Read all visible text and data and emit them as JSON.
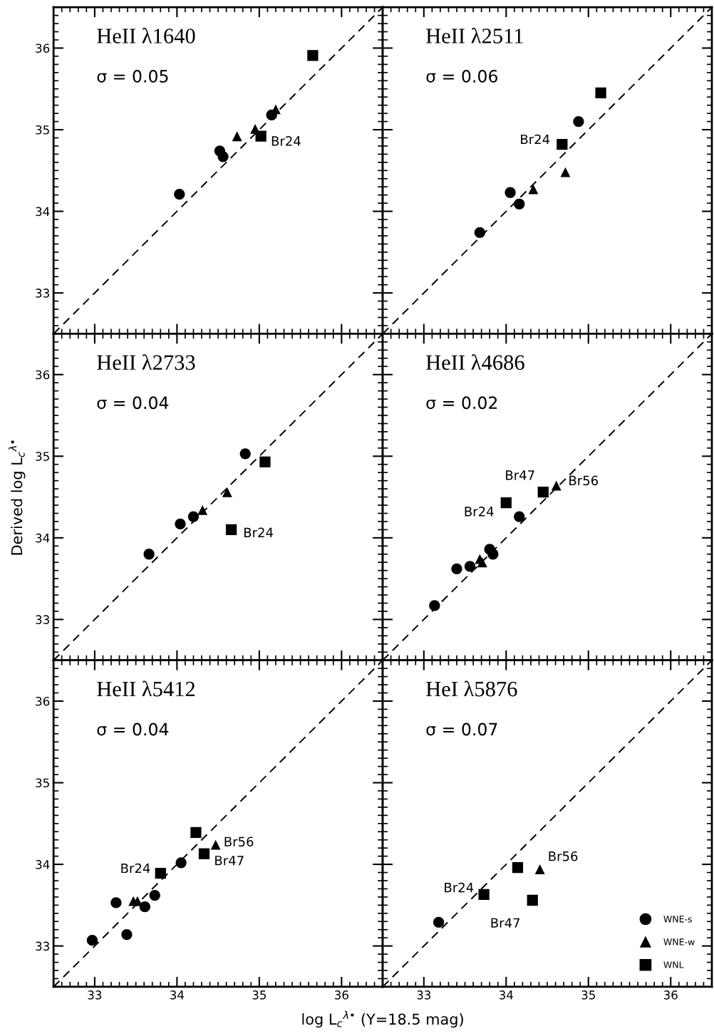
{
  "chart_data": [
    {
      "type": "scatter",
      "title": "HeII λ1640",
      "subtitle": "σ = 0.05",
      "xlim": [
        32.5,
        36.5
      ],
      "ylim": [
        32.5,
        36.5
      ],
      "xticks": [
        33,
        34,
        35,
        36
      ],
      "yticks": [
        33,
        34,
        35,
        36
      ],
      "tick_labels": "y",
      "grid": false,
      "annotations": [
        {
          "text": "Br24",
          "x": 35.02,
          "y": 34.92
        }
      ],
      "series": [
        {
          "type": "line",
          "color": "#000000",
          "line_style": "dashed",
          "marker": "none",
          "x": [
            32.5,
            36.5
          ],
          "values": [
            32.5,
            36.5
          ]
        },
        {
          "color": "#000000",
          "marker": "circle",
          "x": [
            34.03,
            34.52,
            34.56,
            35.15
          ],
          "values": [
            34.21,
            34.74,
            34.67,
            35.18
          ]
        },
        {
          "color": "#000000",
          "marker": "triangle",
          "x": [
            34.73,
            34.95,
            35.2
          ],
          "values": [
            34.92,
            35.01,
            35.25
          ]
        },
        {
          "color": "#000000",
          "marker": "square",
          "x": [
            35.02,
            35.65
          ],
          "values": [
            34.92,
            35.91
          ]
        }
      ]
    },
    {
      "type": "scatter",
      "title": "HeII λ2511",
      "subtitle": "σ = 0.06",
      "xlim": [
        32.5,
        36.5
      ],
      "ylim": [
        32.5,
        36.5
      ],
      "xticks": [
        33,
        34,
        35,
        36
      ],
      "yticks": [
        33,
        34,
        35,
        36
      ],
      "tick_labels": false,
      "grid": false,
      "annotations": [
        {
          "text": "Br24",
          "x": 34.68,
          "y": 34.82
        }
      ],
      "series": [
        {
          "type": "line",
          "color": "#000000",
          "line_style": "dashed",
          "marker": "none",
          "x": [
            32.5,
            36.5
          ],
          "values": [
            32.5,
            36.5
          ]
        },
        {
          "color": "#000000",
          "marker": "circle",
          "x": [
            33.68,
            34.05,
            34.16,
            34.88
          ],
          "values": [
            33.74,
            34.23,
            34.09,
            35.1
          ]
        },
        {
          "color": "#000000",
          "marker": "triangle",
          "x": [
            34.33,
            34.72
          ],
          "values": [
            34.27,
            34.48
          ]
        },
        {
          "color": "#000000",
          "marker": "square",
          "x": [
            34.68,
            35.15
          ],
          "values": [
            34.82,
            35.45
          ]
        }
      ]
    },
    {
      "type": "scatter",
      "title": "HeII λ2733",
      "subtitle": "σ = 0.04",
      "ylabel": "Derived log L$_{c}$$^{λ•}$",
      "xlim": [
        32.5,
        36.5
      ],
      "ylim": [
        32.5,
        36.5
      ],
      "xticks": [
        33,
        34,
        35,
        36
      ],
      "yticks": [
        33,
        34,
        35,
        36
      ],
      "tick_labels": "y",
      "grid": false,
      "annotations": [
        {
          "text": "Br24",
          "x": 34.66,
          "y": 34.1
        }
      ],
      "series": [
        {
          "type": "line",
          "color": "#000000",
          "line_style": "dashed",
          "marker": "none",
          "x": [
            32.5,
            36.5
          ],
          "values": [
            32.5,
            36.5
          ]
        },
        {
          "color": "#000000",
          "marker": "circle",
          "x": [
            33.66,
            34.04,
            34.2,
            34.83
          ],
          "values": [
            33.8,
            34.17,
            34.26,
            35.03
          ]
        },
        {
          "color": "#000000",
          "marker": "triangle",
          "x": [
            34.31,
            34.61
          ],
          "values": [
            34.34,
            34.56
          ]
        },
        {
          "color": "#000000",
          "marker": "square",
          "x": [
            35.07,
            34.66
          ],
          "values": [
            34.93,
            34.1
          ]
        }
      ]
    },
    {
      "type": "scatter",
      "title": "HeII λ4686",
      "subtitle": "σ = 0.02",
      "xlim": [
        32.5,
        36.5
      ],
      "ylim": [
        32.5,
        36.5
      ],
      "xticks": [
        33,
        34,
        35,
        36
      ],
      "yticks": [
        33,
        34,
        35,
        36
      ],
      "tick_labels": false,
      "grid": false,
      "annotations": [
        {
          "text": "Br24",
          "x": 34.0,
          "y": 34.43
        },
        {
          "text": "Br47",
          "x": 34.45,
          "y": 34.56
        },
        {
          "text": "Br56",
          "x": 34.61,
          "y": 34.64
        }
      ],
      "series": [
        {
          "type": "line",
          "color": "#000000",
          "line_style": "dashed",
          "marker": "none",
          "x": [
            32.5,
            36.5
          ],
          "values": [
            32.5,
            36.5
          ]
        },
        {
          "color": "#000000",
          "marker": "circle",
          "x": [
            33.13,
            33.4,
            33.56,
            33.8,
            33.84,
            34.16
          ],
          "values": [
            33.17,
            33.62,
            33.65,
            33.86,
            33.8,
            34.26
          ]
        },
        {
          "color": "#000000",
          "marker": "triangle",
          "x": [
            33.68,
            33.71,
            34.61
          ],
          "values": [
            33.74,
            33.7,
            34.64
          ]
        },
        {
          "color": "#000000",
          "marker": "square",
          "x": [
            34.0,
            34.43,
            34.45
          ],
          "values": [
            34.43,
            null,
            34.56
          ]
        }
      ]
    },
    {
      "type": "scatter",
      "title": "HeII λ5412",
      "subtitle": "σ = 0.04",
      "xlabel": "log L$_{c}$$^{λ•}$ (Y=18.5 mag)",
      "xlim": [
        32.5,
        36.5
      ],
      "ylim": [
        32.5,
        36.5
      ],
      "xticks": [
        33,
        34,
        35,
        36
      ],
      "yticks": [
        33,
        34,
        35,
        36
      ],
      "grid": false,
      "annotations": [
        {
          "text": "Br24",
          "x": 33.8,
          "y": 33.89
        },
        {
          "text": "Br56",
          "x": 34.47,
          "y": 34.24
        },
        {
          "text": "Br47",
          "x": 34.33,
          "y": 34.13
        }
      ],
      "series": [
        {
          "type": "line",
          "color": "#000000",
          "line_style": "dashed",
          "marker": "none",
          "x": [
            32.5,
            36.5
          ],
          "values": [
            32.5,
            36.5
          ]
        },
        {
          "color": "#000000",
          "marker": "circle",
          "x": [
            32.97,
            33.26,
            33.39,
            33.61,
            33.73,
            34.05
          ],
          "values": [
            33.07,
            33.53,
            33.14,
            33.48,
            33.62,
            34.02
          ]
        },
        {
          "color": "#000000",
          "marker": "triangle",
          "x": [
            33.47,
            33.52,
            34.47
          ],
          "values": [
            33.55,
            33.55,
            34.24
          ]
        },
        {
          "color": "#000000",
          "marker": "square",
          "x": [
            33.8,
            34.23,
            34.33
          ],
          "values": [
            33.89,
            34.39,
            34.13
          ]
        }
      ]
    },
    {
      "type": "scatter",
      "title": "HeI λ5876",
      "subtitle": "σ = 0.07",
      "xlim": [
        32.5,
        36.5
      ],
      "ylim": [
        32.5,
        36.5
      ],
      "xticks": [
        33,
        34,
        35,
        36
      ],
      "yticks": [
        33,
        34,
        35,
        36
      ],
      "tick_labels": "x",
      "grid": false,
      "legend": "bottom right",
      "annotations": [
        {
          "text": "Br24",
          "x": 33.73,
          "y": 33.63
        },
        {
          "text": "Br56",
          "x": 34.41,
          "y": 33.94
        },
        {
          "text": "Br47",
          "x": 34.32,
          "y": 33.56
        }
      ],
      "series": [
        {
          "type": "line",
          "color": "#000000",
          "line_style": "dashed",
          "marker": "none",
          "x": [
            32.5,
            36.5
          ],
          "values": [
            32.5,
            36.5
          ]
        },
        {
          "name": "WNE-s",
          "color": "#000000",
          "marker": "circle",
          "x": [
            33.18
          ],
          "values": [
            33.29
          ]
        },
        {
          "name": "WNE-w",
          "color": "#000000",
          "marker": "triangle",
          "x": [
            34.41
          ],
          "values": [
            33.94
          ]
        },
        {
          "name": "WNL",
          "color": "#000000",
          "marker": "square",
          "x": [
            34.14,
            33.73,
            34.32
          ],
          "values": [
            33.96,
            33.63,
            33.56
          ]
        }
      ]
    }
  ]
}
